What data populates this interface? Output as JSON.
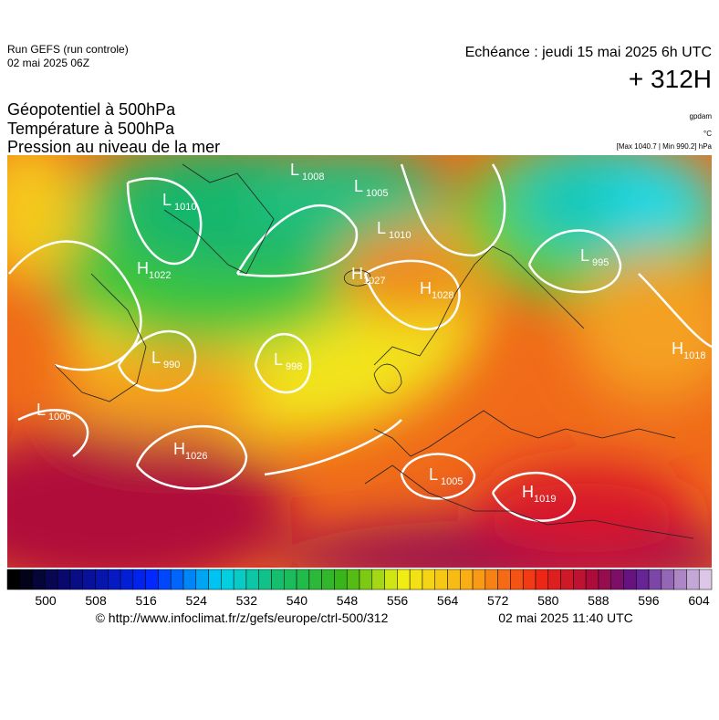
{
  "header": {
    "run": "Run GEFS (run controle)",
    "run_date": "02 mai 2025 06Z",
    "echeance": "Echéance : jeudi 15 mai 2025 6h UTC",
    "lead": "+ 312H"
  },
  "titles": [
    "Géopotentiel à 500hPa",
    "Température à 500hPa",
    "Pression au niveau de la mer"
  ],
  "units": [
    "gpdam",
    "°C",
    "[Max 1040.7 | Min 990.2] hPa"
  ],
  "pressure_centers": [
    {
      "type": "H",
      "value": "1022"
    },
    {
      "type": "L",
      "value": "1010"
    },
    {
      "type": "L",
      "value": "1008"
    },
    {
      "type": "L",
      "value": "1005"
    },
    {
      "type": "L",
      "value": "1010"
    },
    {
      "type": "H",
      "value": "1027"
    },
    {
      "type": "H",
      "value": "1028"
    },
    {
      "type": "L",
      "value": "995"
    },
    {
      "type": "H",
      "value": "1018"
    },
    {
      "type": "L",
      "value": "990"
    },
    {
      "type": "L",
      "value": "998"
    },
    {
      "type": "L",
      "value": "1006"
    },
    {
      "type": "H",
      "value": "1026"
    },
    {
      "type": "L",
      "value": "1005"
    },
    {
      "type": "H",
      "value": "1019"
    }
  ],
  "colorbar": {
    "ticks": [
      "500",
      "508",
      "516",
      "524",
      "532",
      "540",
      "548",
      "556",
      "564",
      "572",
      "580",
      "588",
      "596",
      "604"
    ]
  },
  "footer": {
    "url": "© http://www.infoclimat.fr/z/gefs/europe/ctrl-500/312",
    "date": "02 mai 2025 11:40 UTC"
  }
}
